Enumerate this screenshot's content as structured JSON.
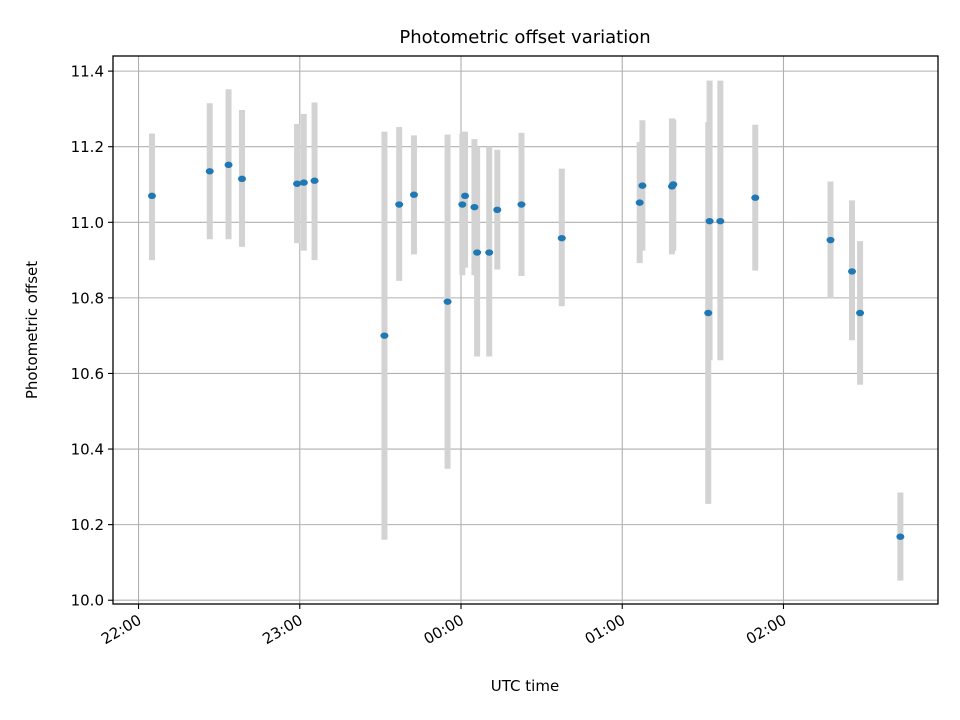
{
  "chart_data": {
    "type": "scatter",
    "title": "Photometric offset variation",
    "xlabel": "UTC time",
    "ylabel": "Photometric offset",
    "x_unit": "UTC date-time",
    "xlim": [
      "2023-01-01T21:50:30",
      "2023-01-02T02:57:30"
    ],
    "ylim": [
      9.99,
      11.44
    ],
    "xticks": [
      {
        "value": "2023-01-01T22:00:00",
        "label": "22:00"
      },
      {
        "value": "2023-01-01T23:00:00",
        "label": "23:00"
      },
      {
        "value": "2023-01-02T00:00:00",
        "label": "00:00"
      },
      {
        "value": "2023-01-02T01:00:00",
        "label": "01:00"
      },
      {
        "value": "2023-01-02T02:00:00",
        "label": "02:00"
      }
    ],
    "yticks": [
      10.0,
      10.2,
      10.4,
      10.6,
      10.8,
      11.0,
      11.2,
      11.4
    ],
    "ytick_labels": [
      "10.0",
      "10.2",
      "10.4",
      "10.6",
      "10.8",
      "11.0",
      "11.2",
      "11.4"
    ],
    "grid": true,
    "marker_color": "#1f77b4",
    "errorbar_color": "#d3d3d3",
    "points": [
      {
        "x": "2023-01-01T22:05:00",
        "y": 11.07,
        "lo": 10.9,
        "hi": 11.235
      },
      {
        "x": "2023-01-01T22:26:30",
        "y": 11.135,
        "lo": 10.955,
        "hi": 11.315
      },
      {
        "x": "2023-01-01T22:33:30",
        "y": 11.152,
        "lo": 10.955,
        "hi": 11.352
      },
      {
        "x": "2023-01-01T22:38:30",
        "y": 11.115,
        "lo": 10.935,
        "hi": 11.297
      },
      {
        "x": "2023-01-01T22:59:00",
        "y": 11.102,
        "lo": 10.945,
        "hi": 11.26
      },
      {
        "x": "2023-01-01T23:01:30",
        "y": 11.105,
        "lo": 10.925,
        "hi": 11.287
      },
      {
        "x": "2023-01-01T23:05:30",
        "y": 11.11,
        "lo": 10.9,
        "hi": 11.317
      },
      {
        "x": "2023-01-01T23:31:30",
        "y": 10.7,
        "lo": 10.16,
        "hi": 11.24
      },
      {
        "x": "2023-01-01T23:37:00",
        "y": 11.047,
        "lo": 10.845,
        "hi": 11.252
      },
      {
        "x": "2023-01-01T23:42:30",
        "y": 11.073,
        "lo": 10.915,
        "hi": 11.23
      },
      {
        "x": "2023-01-01T23:55:00",
        "y": 10.79,
        "lo": 10.348,
        "hi": 11.232
      },
      {
        "x": "2023-01-02T00:00:30",
        "y": 11.047,
        "lo": 10.86,
        "hi": 11.235
      },
      {
        "x": "2023-01-02T00:01:30",
        "y": 11.07,
        "lo": 10.88,
        "hi": 11.24
      },
      {
        "x": "2023-01-02T00:05:00",
        "y": 11.04,
        "lo": 10.86,
        "hi": 11.22
      },
      {
        "x": "2023-01-02T00:06:00",
        "y": 10.92,
        "lo": 10.645,
        "hi": 11.2
      },
      {
        "x": "2023-01-02T00:10:30",
        "y": 10.92,
        "lo": 10.645,
        "hi": 11.2
      },
      {
        "x": "2023-01-02T00:13:30",
        "y": 11.033,
        "lo": 10.875,
        "hi": 11.192
      },
      {
        "x": "2023-01-02T00:22:30",
        "y": 11.047,
        "lo": 10.858,
        "hi": 11.237
      },
      {
        "x": "2023-01-02T00:37:30",
        "y": 10.958,
        "lo": 10.778,
        "hi": 11.142
      },
      {
        "x": "2023-01-02T01:06:30",
        "y": 11.052,
        "lo": 10.892,
        "hi": 11.212
      },
      {
        "x": "2023-01-02T01:07:30",
        "y": 11.097,
        "lo": 10.925,
        "hi": 11.27
      },
      {
        "x": "2023-01-02T01:18:30",
        "y": 11.095,
        "lo": 10.915,
        "hi": 11.275
      },
      {
        "x": "2023-01-02T01:19:00",
        "y": 11.1,
        "lo": 10.925,
        "hi": 11.272
      },
      {
        "x": "2023-01-02T01:32:00",
        "y": 10.76,
        "lo": 10.255,
        "hi": 11.265
      },
      {
        "x": "2023-01-02T01:32:30",
        "y": 11.003,
        "lo": 10.635,
        "hi": 11.375
      },
      {
        "x": "2023-01-02T01:36:30",
        "y": 11.003,
        "lo": 10.635,
        "hi": 11.375
      },
      {
        "x": "2023-01-02T01:49:30",
        "y": 11.065,
        "lo": 10.872,
        "hi": 11.258
      },
      {
        "x": "2023-01-02T02:17:30",
        "y": 10.953,
        "lo": 10.798,
        "hi": 11.108
      },
      {
        "x": "2023-01-02T02:25:30",
        "y": 10.87,
        "lo": 10.688,
        "hi": 11.058
      },
      {
        "x": "2023-01-02T02:28:30",
        "y": 10.76,
        "lo": 10.57,
        "hi": 10.95
      },
      {
        "x": "2023-01-02T02:43:30",
        "y": 10.168,
        "lo": 10.052,
        "hi": 10.285
      }
    ]
  }
}
